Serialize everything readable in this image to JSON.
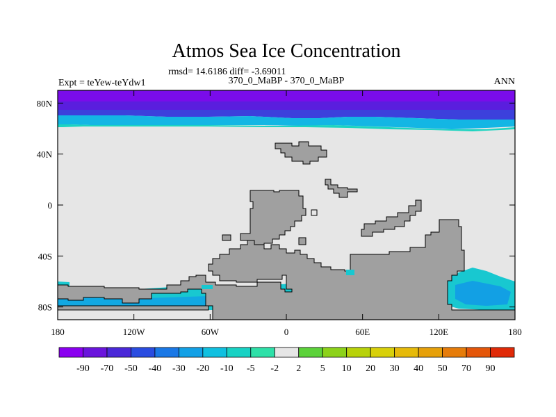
{
  "title": "Atmos Sea Ice Concentration",
  "stats": "rmsd= 14.6186 diff= -3.69011",
  "experiment": "Expt = teYew-teYdw1",
  "comparison": "370_0_MaBP - 370_0_MaBP",
  "season": "ANN",
  "map": {
    "lon_range": [
      -180,
      180
    ],
    "lat_range": [
      -90,
      90
    ],
    "lon_ticks": [
      {
        "value": -180,
        "label": "180"
      },
      {
        "value": -120,
        "label": "120W"
      },
      {
        "value": -60,
        "label": "60W"
      },
      {
        "value": 0,
        "label": "0"
      },
      {
        "value": 60,
        "label": "60E"
      },
      {
        "value": 120,
        "label": "120E"
      },
      {
        "value": 180,
        "label": "180"
      }
    ],
    "lat_ticks": [
      {
        "value": 80,
        "label": "80N"
      },
      {
        "value": 40,
        "label": "40N"
      },
      {
        "value": 0,
        "label": "0"
      },
      {
        "value": -40,
        "label": "40S"
      },
      {
        "value": -80,
        "label": "80S"
      }
    ],
    "colors": {
      "background": "#e6e6e6",
      "land": "#a0a0a0",
      "coast": "#000000"
    }
  },
  "colorbar": {
    "labels": [
      "-90",
      "-70",
      "-50",
      "-40",
      "-30",
      "-20",
      "-10",
      "-5",
      "-2",
      "2",
      "5",
      "10",
      "20",
      "30",
      "40",
      "50",
      "70",
      "90"
    ],
    "colors": [
      "#8a00f0",
      "#6a14dc",
      "#4a28d8",
      "#2a4ce0",
      "#1a78e6",
      "#12a0e6",
      "#10c0e0",
      "#18d2c4",
      "#2ee0a8",
      "#e6e6e6",
      "#5cd23a",
      "#8cd21a",
      "#b8d20a",
      "#d8d00a",
      "#e6ba0a",
      "#e6a00a",
      "#e67c0a",
      "#e4560a",
      "#e02a08"
    ]
  }
}
